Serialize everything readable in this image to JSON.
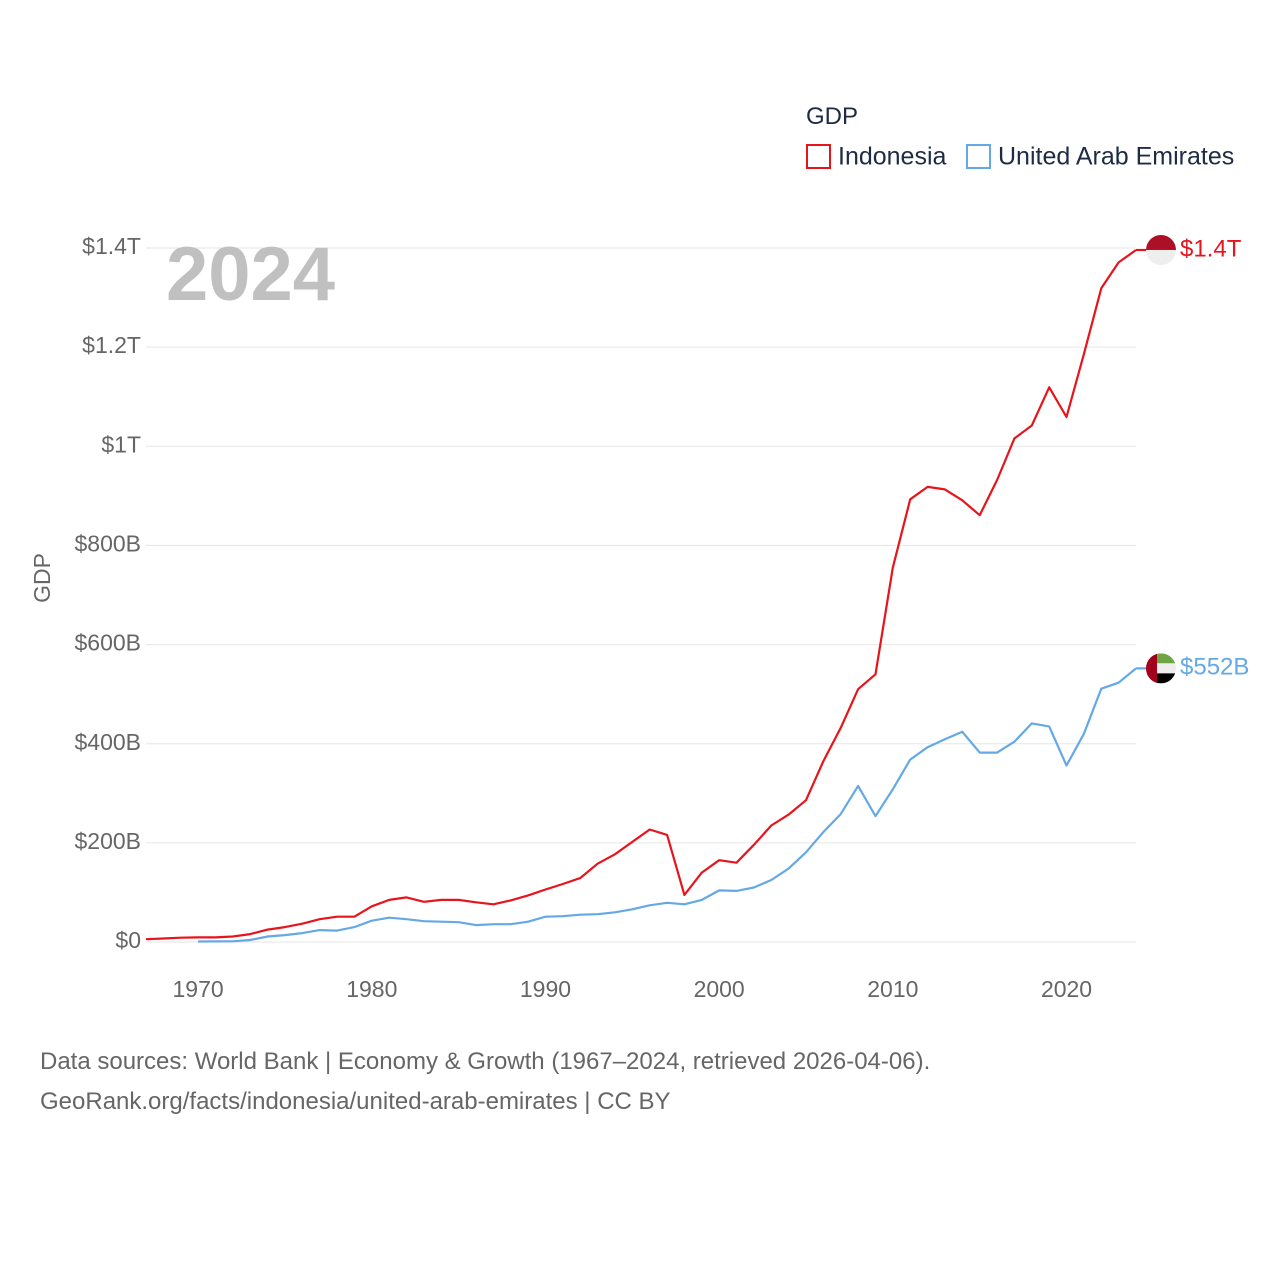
{
  "chart_data": {
    "type": "line",
    "title": "GDP",
    "year_label": "2024",
    "ylabel": "GDP",
    "xlabel": "",
    "xlim": [
      1967,
      2024
    ],
    "ylim": [
      0,
      1400000000000
    ],
    "x_ticks": [
      1970,
      1980,
      1990,
      2000,
      2010,
      2020
    ],
    "y_ticks": [
      {
        "value": 0,
        "label": "$0"
      },
      {
        "value": 200000000000,
        "label": "$200B"
      },
      {
        "value": 400000000000,
        "label": "$400B"
      },
      {
        "value": 600000000000,
        "label": "$600B"
      },
      {
        "value": 800000000000,
        "label": "$800B"
      },
      {
        "value": 1000000000000,
        "label": "$1T"
      },
      {
        "value": 1200000000000,
        "label": "$1.2T"
      },
      {
        "value": 1400000000000,
        "label": "$1.4T"
      }
    ],
    "legend": "top-right",
    "grid": true,
    "series": [
      {
        "name": "Indonesia",
        "color": "#e8141c",
        "end_label": "$1.4T",
        "flag": "indonesia-flag",
        "x": [
          1967,
          1968,
          1969,
          1970,
          1971,
          1972,
          1973,
          1974,
          1975,
          1976,
          1977,
          1978,
          1979,
          1980,
          1981,
          1982,
          1983,
          1984,
          1985,
          1986,
          1987,
          1988,
          1989,
          1990,
          1991,
          1992,
          1993,
          1994,
          1995,
          1996,
          1997,
          1998,
          1999,
          2000,
          2001,
          2002,
          2003,
          2004,
          2005,
          2006,
          2007,
          2008,
          2009,
          2010,
          2011,
          2012,
          2013,
          2014,
          2015,
          2016,
          2017,
          2018,
          2019,
          2020,
          2021,
          2022,
          2023,
          2024
        ],
        "values": [
          5700000000.0,
          7100000000.0,
          8700000000.0,
          9200000000.0,
          9300000000.0,
          11000000000.0,
          16000000000.0,
          25000000000.0,
          30000000000.0,
          37000000000.0,
          46000000000.0,
          51000000000.0,
          51000000000.0,
          72000000000.0,
          85000000000.0,
          90000000000.0,
          81000000000.0,
          85000000000.0,
          85000000000.0,
          80000000000.0,
          76000000000.0,
          84000000000.0,
          94000000000.0,
          106000000000.0,
          117000000000.0,
          129000000000.0,
          158000000000.0,
          177000000000.0,
          202000000000.0,
          227000000000.0,
          216000000000.0,
          95000000000.0,
          140000000000.0,
          165000000000.0,
          160000000000.0,
          196000000000.0,
          235000000000.0,
          257000000000.0,
          286000000000.0,
          365000000000.0,
          432000000000.0,
          510000000000.0,
          540000000000.0,
          755000000000.0,
          893000000000.0,
          918000000000.0,
          913000000000.0,
          891000000000.0,
          861000000000.0,
          932000000000.0,
          1016000000000.0,
          1042000000000.0,
          1119000000000.0,
          1059000000000.0,
          1186000000000.0,
          1319000000000.0,
          1371000000000.0,
          1396000000000.0
        ]
      },
      {
        "name": "United Arab Emirates",
        "color": "#64a9e6",
        "end_label": "$552B",
        "flag": "uae-flag",
        "x": [
          1970,
          1971,
          1972,
          1973,
          1974,
          1975,
          1976,
          1977,
          1978,
          1979,
          1980,
          1981,
          1982,
          1983,
          1984,
          1985,
          1986,
          1987,
          1988,
          1989,
          1990,
          1991,
          1992,
          1993,
          1994,
          1995,
          1996,
          1997,
          1998,
          1999,
          2000,
          2001,
          2002,
          2003,
          2004,
          2005,
          2006,
          2007,
          2008,
          2009,
          2010,
          2011,
          2012,
          2013,
          2014,
          2015,
          2016,
          2017,
          2018,
          2019,
          2020,
          2021,
          2022,
          2023,
          2024
        ],
        "values": [
          1000000000.0,
          1200000000.0,
          1500000000.0,
          4000000000.0,
          11000000000.0,
          14000000000.0,
          18000000000.0,
          24000000000.0,
          23000000000.0,
          30000000000.0,
          43000000000.0,
          49000000000.0,
          46000000000.0,
          42000000000.0,
          41000000000.0,
          40000000000.0,
          34000000000.0,
          36000000000.0,
          36000000000.0,
          41000000000.0,
          51000000000.0,
          52000000000.0,
          55000000000.0,
          56000000000.0,
          60000000000.0,
          66000000000.0,
          74000000000.0,
          79000000000.0,
          76000000000.0,
          85000000000.0,
          104000000000.0,
          103000000000.0,
          110000000000.0,
          125000000000.0,
          148000000000.0,
          181000000000.0,
          222000000000.0,
          258000000000.0,
          315000000000.0,
          254000000000.0,
          308000000000.0,
          368000000000.0,
          393000000000.0,
          409000000000.0,
          424000000000.0,
          382000000000.0,
          382000000000.0,
          404000000000.0,
          441000000000.0,
          435000000000.0,
          356000000000.0,
          420000000000.0,
          511000000000.0,
          523000000000.0,
          552000000000.0
        ]
      }
    ]
  },
  "footer": {
    "line1": "Data sources: World Bank | Economy & Growth (1967–2024, retrieved 2026-04-06).",
    "line2": "GeoRank.org/facts/indonesia/united-arab-emirates | CC BY"
  }
}
